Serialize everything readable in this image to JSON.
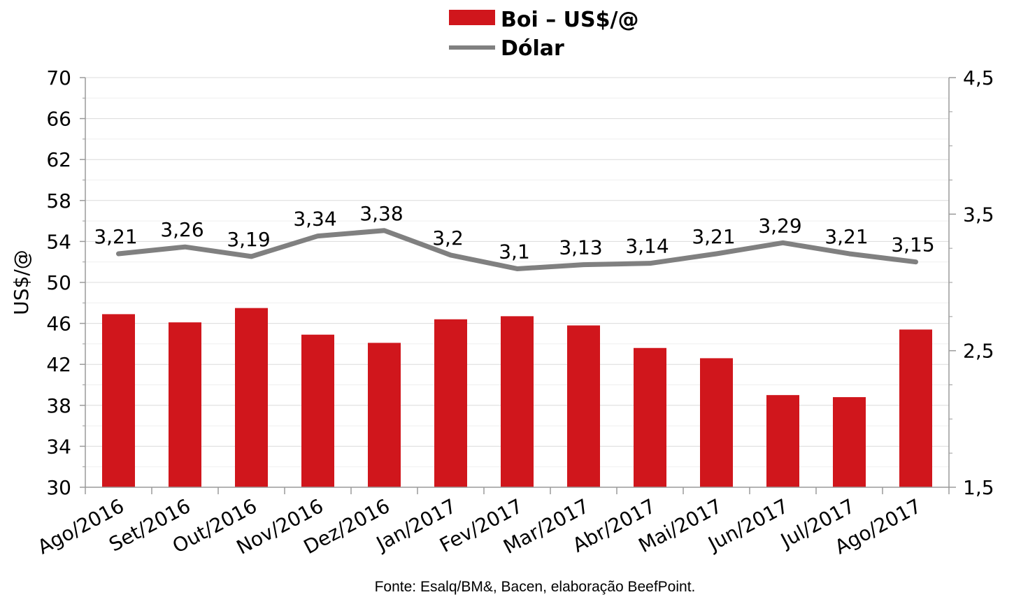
{
  "chart_data": {
    "type": "bar",
    "categories": [
      "Ago/2016",
      "Set/2016",
      "Out/2016",
      "Nov/2016",
      "Dez/2016",
      "Jan/2017",
      "Fev/2017",
      "Mar/2017",
      "Abr/2017",
      "Mai/2017",
      "Jun/2017",
      "Jul/2017",
      "Ago/2017"
    ],
    "series": [
      {
        "name": "Boi – US$/@",
        "type": "bar",
        "axis": "left",
        "color": "#d0161c",
        "values": [
          46.9,
          46.1,
          47.5,
          44.9,
          44.1,
          46.4,
          46.7,
          45.8,
          43.6,
          42.6,
          39.0,
          38.8,
          45.4
        ]
      },
      {
        "name": "Dólar",
        "type": "line",
        "axis": "right",
        "color": "#808080",
        "values": [
          3.21,
          3.26,
          3.19,
          3.34,
          3.38,
          3.2,
          3.1,
          3.13,
          3.14,
          3.21,
          3.29,
          3.21,
          3.15
        ],
        "labels": [
          "3,21",
          "3,26",
          "3,19",
          "3,34",
          "3,38",
          "3,2",
          "3,1",
          "3,13",
          "3,14",
          "3,21",
          "3,29",
          "3,21",
          "3,15"
        ]
      }
    ],
    "ylabel": "US$/@",
    "ylim": [
      30,
      70
    ],
    "yticks": [
      "30",
      "34",
      "38",
      "42",
      "46",
      "50",
      "54",
      "58",
      "62",
      "66",
      "70"
    ],
    "y2lim": [
      1.5,
      4.5
    ],
    "y2ticks": [
      "1,5",
      "2,5",
      "3,5",
      "4,5"
    ],
    "legend_position": "top-center",
    "grid": true,
    "source": "Fonte: Esalq/BM&, Bacen, elaboração BeefPoint."
  }
}
